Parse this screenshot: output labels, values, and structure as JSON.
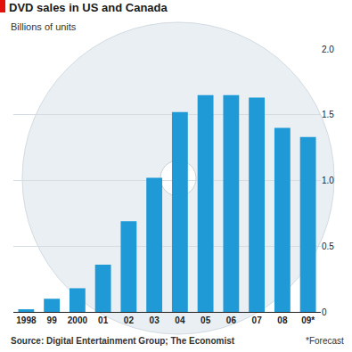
{
  "chart_data": {
    "type": "bar",
    "title": "DVD sales in US and Canada",
    "subtitle": "Billions of units",
    "categories": [
      "1998",
      "99",
      "2000",
      "01",
      "02",
      "03",
      "04",
      "05",
      "06",
      "07",
      "08",
      "09*"
    ],
    "values": [
      0.02,
      0.1,
      0.18,
      0.36,
      0.69,
      1.02,
      1.52,
      1.65,
      1.65,
      1.63,
      1.4,
      1.33
    ],
    "color": "#1f9ad6",
    "ylim": [
      0,
      2
    ],
    "yticks": [
      0,
      0.5,
      {
        "value": 1,
        "label": "1.0"
      },
      1.5,
      {
        "value": 2,
        "label": "2.0"
      }
    ],
    "grid": true,
    "source": "Source: Digital Entertainment Group; The Economist",
    "note": "*Forecast"
  }
}
